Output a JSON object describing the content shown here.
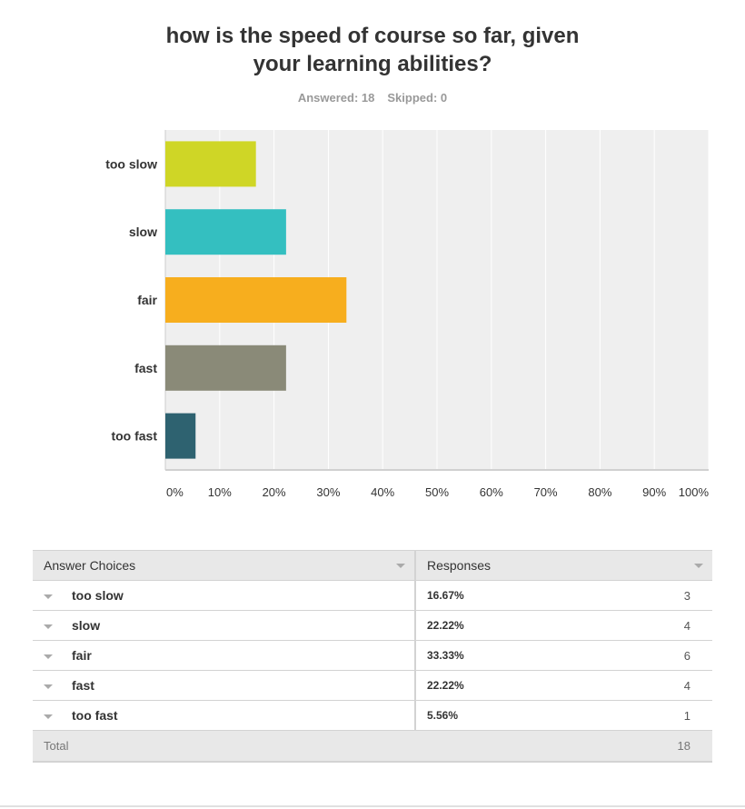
{
  "title_line1": "how is the speed of course so far, given",
  "title_line2": "your learning abilities?",
  "answered_label": "Answered: 18",
  "skipped_label": "Skipped: 0",
  "chart_data": {
    "type": "bar",
    "orientation": "horizontal",
    "categories": [
      "too slow",
      "slow",
      "fair",
      "fast",
      "too fast"
    ],
    "values": [
      16.67,
      22.22,
      33.33,
      22.22,
      5.56
    ],
    "colors": [
      "#cfd626",
      "#34bfc0",
      "#f7ae1e",
      "#8a8a78",
      "#2e6270"
    ],
    "xlim": [
      0,
      100
    ],
    "xticks": [
      "0%",
      "10%",
      "20%",
      "30%",
      "40%",
      "50%",
      "60%",
      "70%",
      "80%",
      "90%",
      "100%"
    ],
    "grid": true
  },
  "table": {
    "header_choices": "Answer Choices",
    "header_responses": "Responses",
    "rows": [
      {
        "choice": "too slow",
        "pct": "16.67%",
        "count": "3"
      },
      {
        "choice": "slow",
        "pct": "22.22%",
        "count": "4"
      },
      {
        "choice": "fair",
        "pct": "33.33%",
        "count": "6"
      },
      {
        "choice": "fast",
        "pct": "22.22%",
        "count": "4"
      },
      {
        "choice": "too fast",
        "pct": "5.56%",
        "count": "1"
      }
    ],
    "total_label": "Total",
    "total_value": "18"
  }
}
